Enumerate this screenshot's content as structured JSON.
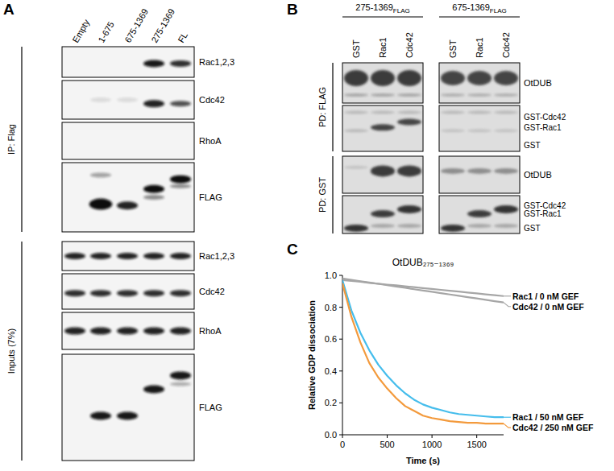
{
  "panels": {
    "A": {
      "label": "A",
      "lanes": [
        "Empty",
        "1-675",
        "675-1369",
        "275-1369",
        "FL"
      ],
      "groups": [
        {
          "label": "IP: Flag",
          "blots": [
            "Rac1,2,3",
            "Cdc42",
            "RhoA",
            "FLAG"
          ]
        },
        {
          "label": "Inputs (7%)",
          "blots": [
            "Rac1,2,3",
            "Cdc42",
            "RhoA",
            "FLAG"
          ]
        }
      ]
    },
    "B": {
      "label": "B",
      "gels": [
        {
          "construct": "275-1369",
          "tag": "FLAG",
          "lanes": [
            "GST",
            "Rac1",
            "Cdc42"
          ]
        },
        {
          "construct": "675-1369",
          "tag": "FLAG",
          "lanes": [
            "GST",
            "Rac1",
            "Cdc42"
          ]
        }
      ],
      "pulldowns": [
        {
          "label": "PD: FLAG",
          "bands": [
            "OtDUB",
            "GST-Cdc42",
            "GST-Rac1",
            "GST"
          ]
        },
        {
          "label": "PD: GST",
          "bands": [
            "OtDUB",
            "GST-Cdc42",
            "GST-Rac1",
            "GST"
          ]
        }
      ]
    },
    "C": {
      "label": "C"
    }
  },
  "chart_data": {
    "type": "line",
    "title": "OtDUB₂₇₅₋₁₃₆₉",
    "x_label": "Time (s)",
    "y_label": "Relative GDP dissociation",
    "x": [
      0,
      100,
      200,
      300,
      400,
      500,
      600,
      700,
      800,
      900,
      1000,
      1100,
      1200,
      1300,
      1400,
      1500,
      1600,
      1700,
      1800
    ],
    "xlim": [
      0,
      1800
    ],
    "xticks": [
      0,
      500,
      1000,
      1500
    ],
    "ylim": [
      0,
      1
    ],
    "yticks": [
      {
        "value": 0,
        "label": "0.0"
      },
      {
        "value": 0.2,
        "label": "0.2"
      },
      {
        "value": 0.4,
        "label": "0.4"
      },
      {
        "value": 0.6,
        "label": "0.6"
      },
      {
        "value": 0.8,
        "label": "0.8"
      },
      {
        "value": 1,
        "label": "1.0"
      }
    ],
    "grid": false,
    "series": [
      {
        "name": "Rac1 / 0 nM GEF",
        "color": "#a6a6a6",
        "values": [
          0.97,
          0.965,
          0.96,
          0.953,
          0.948,
          0.942,
          0.937,
          0.931,
          0.926,
          0.92,
          0.915,
          0.909,
          0.903,
          0.898,
          0.892,
          0.887,
          0.881,
          0.876,
          0.87
        ]
      },
      {
        "name": "Cdc42 / 0 nM GEF",
        "color": "#a6a6a6",
        "values": [
          0.98,
          0.972,
          0.963,
          0.955,
          0.947,
          0.938,
          0.93,
          0.922,
          0.913,
          0.905,
          0.897,
          0.888,
          0.88,
          0.872,
          0.863,
          0.855,
          0.847,
          0.838,
          0.83
        ]
      },
      {
        "name": "Rac1 / 50 nM GEF",
        "color": "#45bdec",
        "values": [
          0.97,
          0.78,
          0.64,
          0.53,
          0.44,
          0.37,
          0.31,
          0.26,
          0.22,
          0.19,
          0.17,
          0.155,
          0.14,
          0.13,
          0.125,
          0.12,
          0.115,
          0.11,
          0.11
        ]
      },
      {
        "name": "Cdc42 / 250 nM GEF",
        "color": "#f39a3c",
        "values": [
          0.95,
          0.74,
          0.58,
          0.45,
          0.36,
          0.29,
          0.23,
          0.18,
          0.15,
          0.12,
          0.105,
          0.095,
          0.085,
          0.08,
          0.075,
          0.075,
          0.07,
          0.07,
          0.07
        ]
      }
    ]
  }
}
